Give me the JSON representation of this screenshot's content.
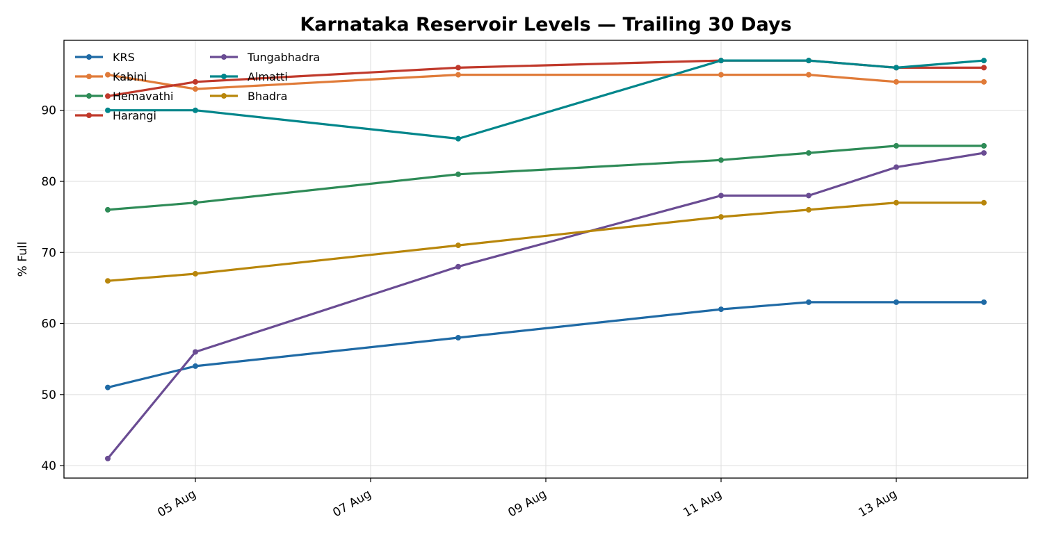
{
  "chart_data": {
    "type": "line",
    "title": "Karnataka Reservoir Levels — Trailing 30 Days",
    "xlabel": "",
    "ylabel": "% Full",
    "x": [
      "2024-08-04",
      "2024-08-05",
      "2024-08-08",
      "2024-08-11",
      "2024-08-12",
      "2024-08-13",
      "2024-08-14"
    ],
    "xlim": [
      "2024-08-03",
      "2024-08-14"
    ],
    "ylim": [
      38.25,
      99.85
    ],
    "xticks": [
      {
        "date": "2024-08-05",
        "label": "05 Aug"
      },
      {
        "date": "2024-08-07",
        "label": "07 Aug"
      },
      {
        "date": "2024-08-09",
        "label": "09 Aug"
      },
      {
        "date": "2024-08-11",
        "label": "11 Aug"
      },
      {
        "date": "2024-08-13",
        "label": "13 Aug"
      }
    ],
    "yticks": [
      40,
      50,
      60,
      70,
      80,
      90
    ],
    "grid": true,
    "legend_position": "top-left",
    "series": [
      {
        "name": "KRS",
        "color": "#1f6aa5",
        "values": [
          51,
          54,
          58,
          62,
          63,
          63,
          63
        ]
      },
      {
        "name": "Kabini",
        "color": "#e07b39",
        "values": [
          95,
          93,
          95,
          95,
          95,
          94,
          94
        ]
      },
      {
        "name": "Hemavathi",
        "color": "#2e8b57",
        "values": [
          76,
          77,
          81,
          83,
          84,
          85,
          85
        ]
      },
      {
        "name": "Harangi",
        "color": "#c0392b",
        "values": [
          92,
          94,
          96,
          97,
          97,
          96,
          96
        ]
      },
      {
        "name": "Tungabhadra",
        "color": "#6a4c93",
        "values": [
          41,
          56,
          68,
          78,
          78,
          82,
          84
        ]
      },
      {
        "name": "Almatti",
        "color": "#00868b",
        "values": [
          90,
          90,
          86,
          97,
          97,
          96,
          97
        ]
      },
      {
        "name": "Bhadra",
        "color": "#b8860b",
        "values": [
          66,
          67,
          71,
          75,
          76,
          77,
          77
        ]
      }
    ]
  }
}
